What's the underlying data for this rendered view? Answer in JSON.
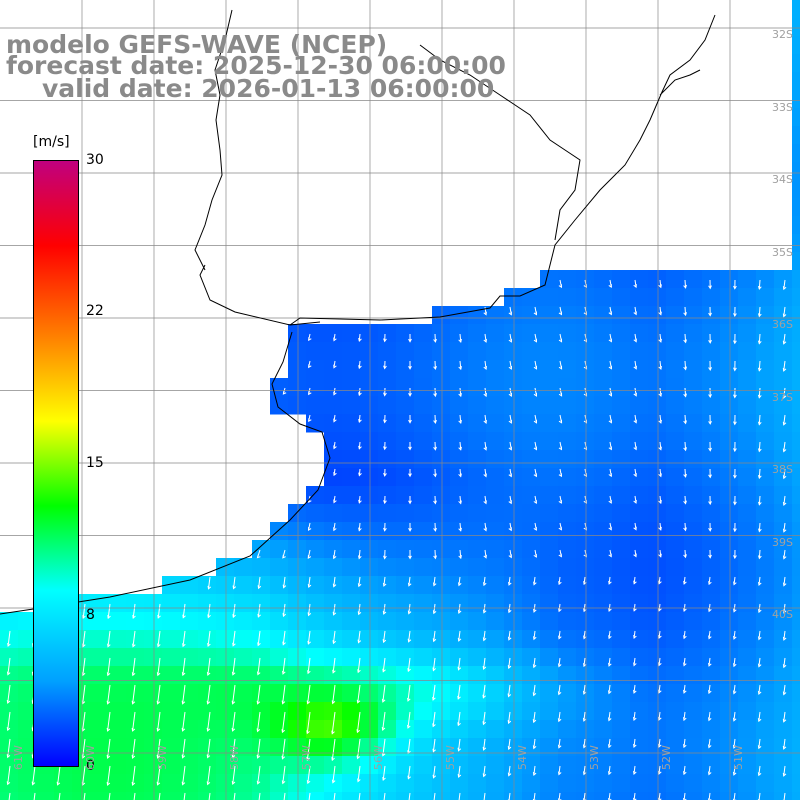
{
  "title": {
    "line1": "modelo GEFS-WAVE (NCEP)",
    "line2": "forecast date: 2025-12-30 06:00:00",
    "line3": "valid date: 2026-01-13 06:00:00"
  },
  "colorbar": {
    "unit": "[m/s]",
    "ticks": [
      "30",
      "22",
      "15",
      "8",
      "0"
    ],
    "tick_values": [
      30,
      22,
      15,
      8,
      0
    ],
    "range": [
      0,
      30
    ],
    "colors": [
      "#0000ff",
      "#00a0ff",
      "#00ffff",
      "#00ff00",
      "#ffff00",
      "#ff8000",
      "#ff0000",
      "#c0007f"
    ]
  },
  "map": {
    "lat_labels": [
      "32S",
      "33S",
      "34S",
      "35S",
      "36S",
      "37S",
      "38S",
      "39S",
      "40S"
    ],
    "lon_labels": [
      "61W",
      "60W",
      "59W",
      "58W",
      "57W",
      "56W",
      "55W",
      "54W",
      "53W",
      "52W",
      "51W"
    ],
    "land_color": "#ffffff",
    "coast_color": "#000000",
    "grid_color": "#888888"
  }
}
